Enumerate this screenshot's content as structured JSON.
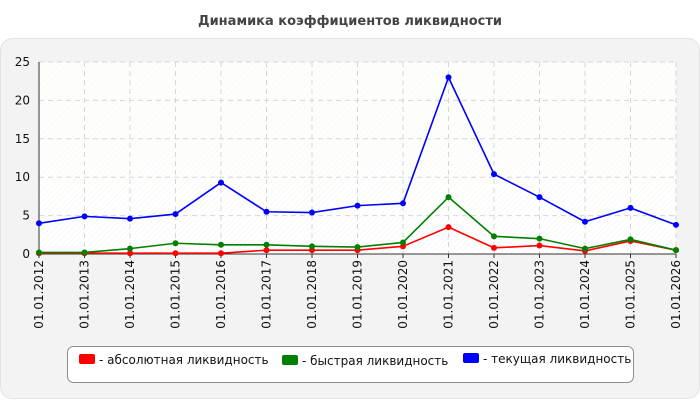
{
  "chart_data": {
    "type": "line",
    "title": "Динамика коэффициентов ликвидности",
    "xlabel": "",
    "ylabel": "",
    "categories": [
      "01.01.2012",
      "01.01.2013",
      "01.01.2014",
      "01.01.2015",
      "01.01.2016",
      "01.01.2017",
      "01.01.2018",
      "01.01.2019",
      "01.01.2020",
      "01.01.2021",
      "01.01.2022",
      "01.01.2023",
      "01.01.2024",
      "01.01.2025",
      "01.01.2026"
    ],
    "ylim": [
      0,
      25
    ],
    "yticks": [
      "0",
      "5",
      "10",
      "15",
      "20",
      "25"
    ],
    "grid": true,
    "legend_position": "bottom",
    "series": [
      {
        "name": "- абсолютная ликвидность",
        "color": "#ff0000",
        "values": [
          0.1,
          0.1,
          0.1,
          0.1,
          0.1,
          0.5,
          0.5,
          0.5,
          1.0,
          3.5,
          0.8,
          1.1,
          0.4,
          1.7,
          0.5
        ]
      },
      {
        "name": "- быстрая ликвидность",
        "color": "#008000",
        "values": [
          0.2,
          0.2,
          0.7,
          1.4,
          1.2,
          1.2,
          1.0,
          0.9,
          1.5,
          7.4,
          2.3,
          2.0,
          0.7,
          1.9,
          0.5
        ]
      },
      {
        "name": "- текущая ликвидность",
        "color": "#0000ff",
        "values": [
          4.0,
          4.9,
          4.6,
          5.2,
          9.3,
          5.5,
          5.4,
          6.3,
          6.6,
          23.0,
          10.4,
          7.4,
          4.2,
          6.0,
          3.8
        ]
      }
    ]
  }
}
